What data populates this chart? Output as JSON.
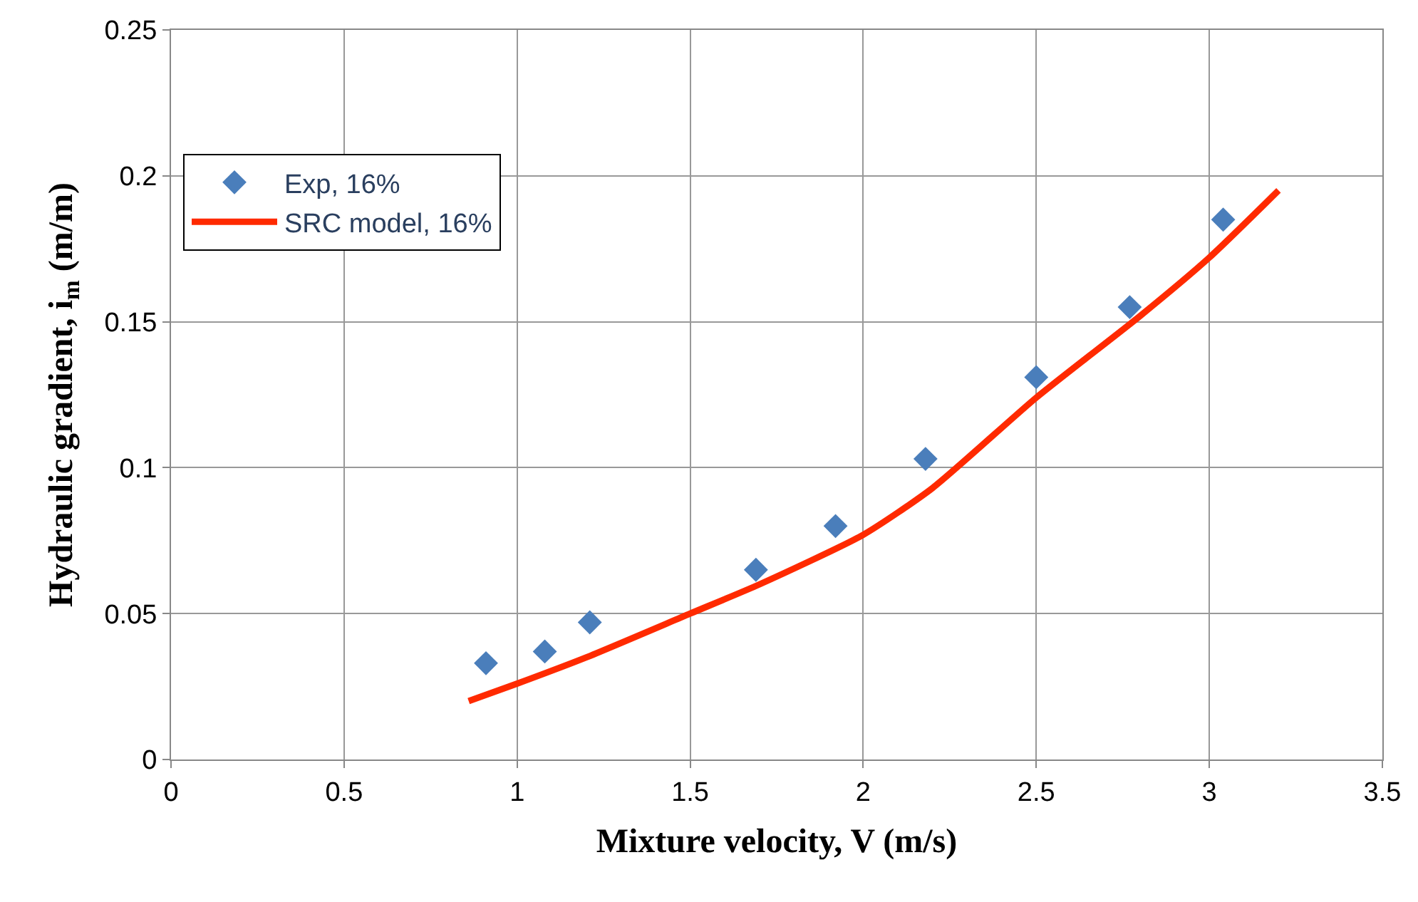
{
  "chart_data": {
    "type": "scatter",
    "xlabel": "Mixture velocity, V (m/s)",
    "ylabel": "Hydraulic gradient, i$_{m}$ (m/m)",
    "xlim": [
      0,
      3.5
    ],
    "xticks": [
      0,
      0.5,
      1,
      1.5,
      2,
      2.5,
      3,
      3.5
    ],
    "ylim": [
      0,
      0.25
    ],
    "yticks": [
      0,
      0.05,
      0.1,
      0.15,
      0.2,
      0.25
    ],
    "grid": true,
    "legend": "top left",
    "series": [
      {
        "name": "Exp, 16%",
        "marker": "diamond",
        "color": "#4a7ebb",
        "x": [
          0.91,
          1.08,
          1.21,
          1.69,
          1.92,
          2.18,
          2.5,
          2.77,
          3.04
        ],
        "values": [
          0.033,
          0.037,
          0.047,
          0.065,
          0.08,
          0.103,
          0.131,
          0.155,
          0.185
        ]
      },
      {
        "name": "SRC model, 16%",
        "type": "line",
        "line_style": "solid",
        "color": "#ff2a00",
        "x": [
          0.86,
          1.0,
          1.2,
          1.5,
          1.7,
          2.0,
          2.2,
          2.5,
          2.8,
          3.0,
          3.2
        ],
        "values": [
          0.02,
          0.026,
          0.035,
          0.05,
          0.06,
          0.077,
          0.093,
          0.124,
          0.152,
          0.172,
          0.195
        ]
      }
    ]
  }
}
